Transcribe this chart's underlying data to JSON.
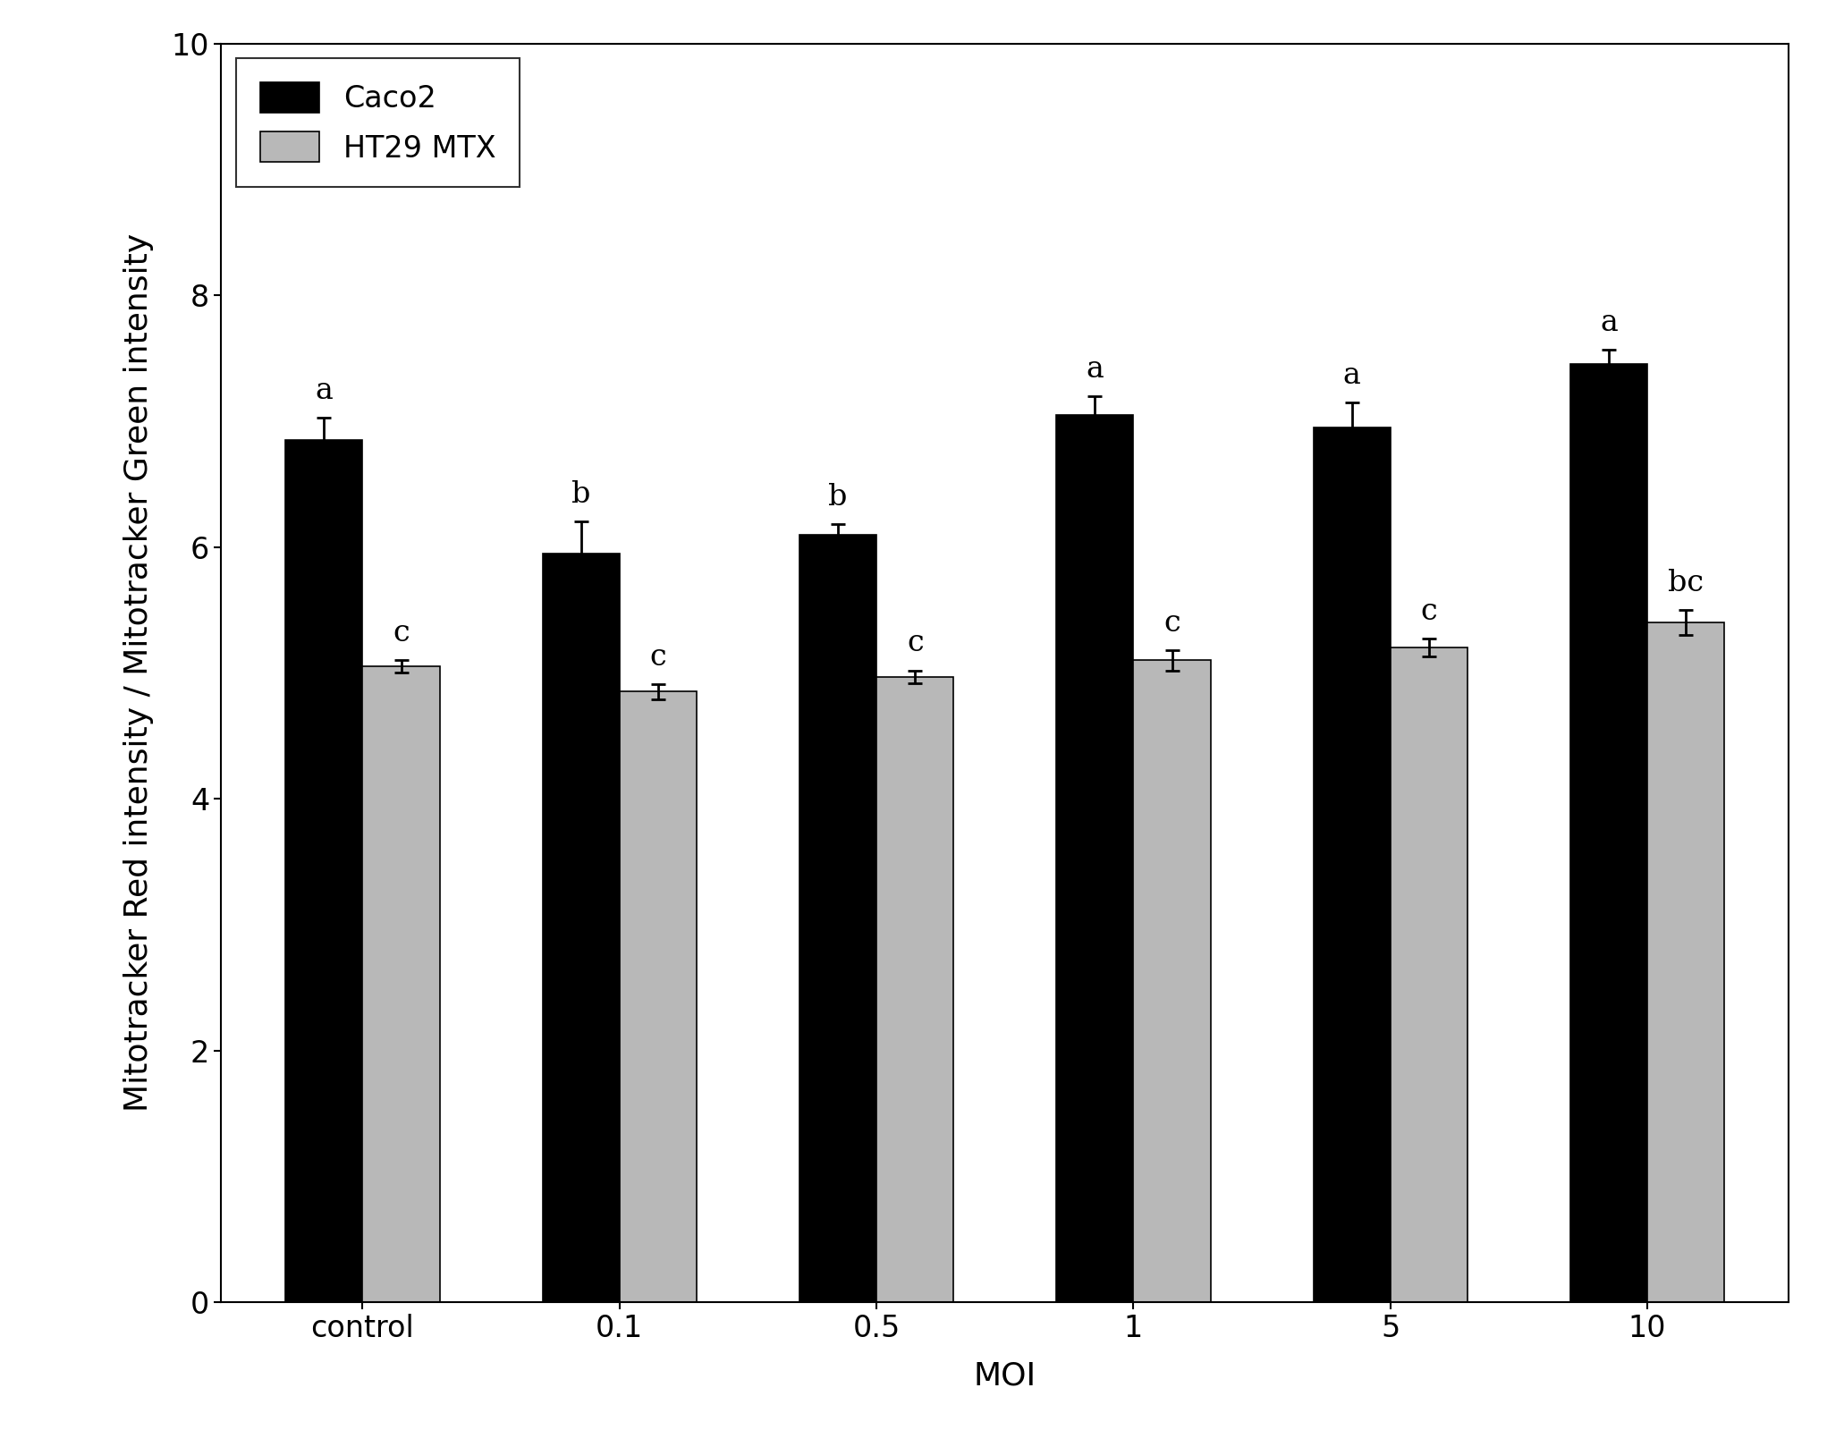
{
  "categories": [
    "control",
    "0.1",
    "0.5",
    "1",
    "5",
    "10"
  ],
  "caco2_values": [
    6.85,
    5.95,
    6.1,
    7.05,
    6.95,
    7.45
  ],
  "caco2_errors": [
    0.18,
    0.25,
    0.08,
    0.15,
    0.2,
    0.12
  ],
  "ht29_values": [
    5.05,
    4.85,
    4.97,
    5.1,
    5.2,
    5.4
  ],
  "ht29_errors": [
    0.05,
    0.06,
    0.05,
    0.08,
    0.07,
    0.1
  ],
  "caco2_color": "#000000",
  "ht29_color": "#b8b8b8",
  "caco2_label": "Caco2",
  "ht29_label": "HT29 MTX",
  "caco2_letters": [
    "a",
    "b",
    "b",
    "a",
    "a",
    "a"
  ],
  "ht29_letters": [
    "c",
    "c",
    "c",
    "c",
    "c",
    "bc"
  ],
  "ylabel": "Mitotracker Red intensity / Mitotracker Green intensity",
  "xlabel": "MOI",
  "ylim": [
    0,
    10
  ],
  "yticks": [
    0,
    2,
    4,
    6,
    8,
    10
  ],
  "bar_width": 0.3,
  "figure_width": 20.62,
  "figure_height": 16.18,
  "dpi": 100,
  "background_color": "#ffffff",
  "edge_color": "#000000",
  "letter_fontsize": 24,
  "axis_label_fontsize": 26,
  "tick_fontsize": 24,
  "legend_fontsize": 24,
  "capsize": 6,
  "elinewidth": 2.0,
  "capthick": 2.0
}
